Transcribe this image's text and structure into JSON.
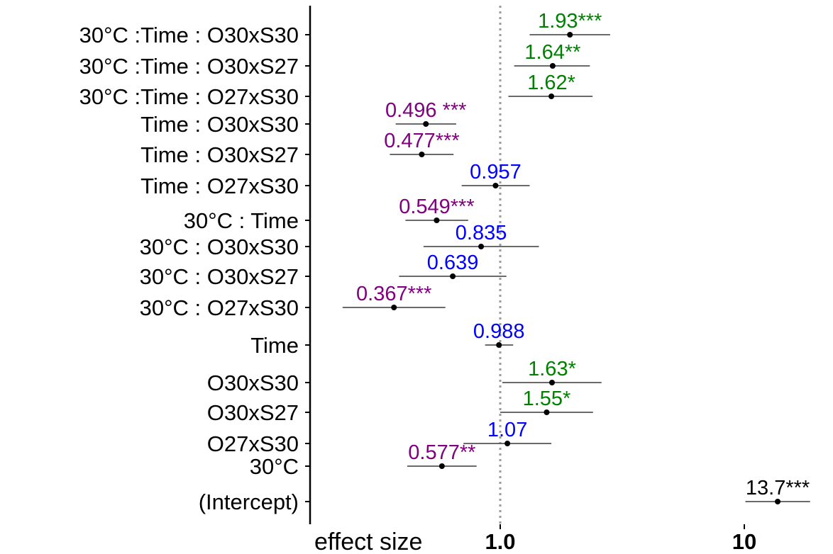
{
  "chart_data": {
    "type": "forest",
    "xscale": "log",
    "xlim": [
      0.3,
      20
    ],
    "xticks": [
      {
        "value": 1,
        "label": "1.0"
      },
      {
        "value": 10,
        "label": "10"
      }
    ],
    "xlabel": "effect size",
    "reference_line": 1,
    "colors": {
      "significant_increase": "#008000",
      "significant_decrease": "#800080",
      "not_significant": "#0000ff",
      "intercept": "#000000",
      "interval": "#555555",
      "point": "#000000",
      "axis": "#000000",
      "refline": "#9a9a9a"
    },
    "rows": [
      {
        "term": "30°C :Time : O30xS30",
        "estimate": 1.93,
        "ci": [
          1.32,
          2.82
        ],
        "label": "1.93***",
        "group": "significant_increase"
      },
      {
        "term": "30°C :Time : O30xS27",
        "estimate": 1.64,
        "ci": [
          1.14,
          2.33
        ],
        "label": "1.64**",
        "group": "significant_increase"
      },
      {
        "term": "30°C :Time : O27xS30",
        "estimate": 1.62,
        "ci": [
          1.08,
          2.39
        ],
        "label": "1.62*",
        "group": "significant_increase"
      },
      {
        "term": "Time : O30xS30",
        "estimate": 0.496,
        "ci": [
          0.373,
          0.66
        ],
        "label": "0.496 ***",
        "group": "significant_decrease"
      },
      {
        "term": "Time : O30xS27",
        "estimate": 0.477,
        "ci": [
          0.353,
          0.644
        ],
        "label": "0.477***",
        "group": "significant_decrease"
      },
      {
        "term": "Time : O27xS30",
        "estimate": 0.957,
        "ci": [
          0.695,
          1.32
        ],
        "label": "0.957",
        "group": "not_significant"
      },
      {
        "term": "30°C : Time",
        "estimate": 0.549,
        "ci": [
          0.409,
          0.739
        ],
        "label": "0.549***",
        "group": "significant_decrease"
      },
      {
        "term": "30°C : O30xS30",
        "estimate": 0.835,
        "ci": [
          0.485,
          1.44
        ],
        "label": "0.835",
        "group": "not_significant"
      },
      {
        "term": "30°C : O30xS27",
        "estimate": 0.639,
        "ci": [
          0.385,
          1.06
        ],
        "label": "0.639",
        "group": "not_significant"
      },
      {
        "term": "30°C : O27xS30",
        "estimate": 0.367,
        "ci": [
          0.226,
          0.596
        ],
        "label": "0.367***",
        "group": "significant_decrease"
      },
      {
        "term": "Time",
        "estimate": 0.988,
        "ci": [
          0.867,
          1.13
        ],
        "label": "0.988",
        "group": "not_significant"
      },
      {
        "term": "O30xS30",
        "estimate": 1.63,
        "ci": [
          1.02,
          2.6
        ],
        "label": "1.63*",
        "group": "significant_increase"
      },
      {
        "term": "O30xS27",
        "estimate": 1.55,
        "ci": [
          1.0,
          2.4
        ],
        "label": "1.55*",
        "group": "significant_increase"
      },
      {
        "term": "O27xS30",
        "estimate": 1.07,
        "ci": [
          0.707,
          1.62
        ],
        "label": "1.07",
        "group": "not_significant"
      },
      {
        "term": "30°C",
        "estimate": 0.577,
        "ci": [
          0.416,
          0.8
        ],
        "label": "0.577**",
        "group": "significant_decrease"
      },
      {
        "term": "(Intercept)",
        "estimate": 13.7,
        "ci": [
          10.1,
          18.6
        ],
        "label": "13.7***",
        "group": "intercept"
      }
    ]
  }
}
